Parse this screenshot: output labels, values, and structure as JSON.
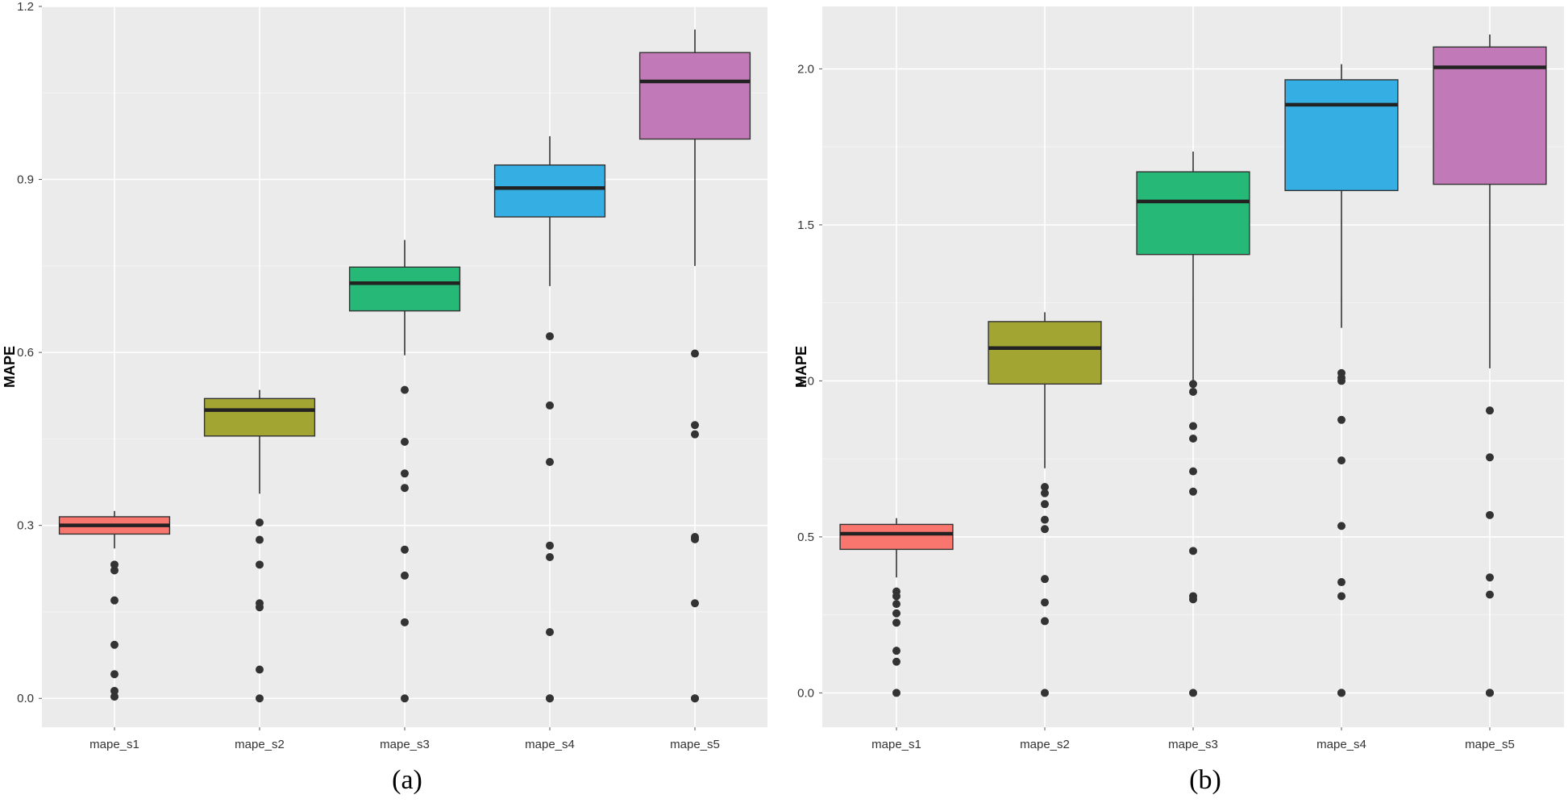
{
  "figure": {
    "panel_captions": [
      "(a)",
      "(b)"
    ]
  },
  "colors": {
    "panel_bg": "#EBEBEB",
    "grid_major": "#FFFFFF",
    "outlier": "#333333",
    "median": "#222222",
    "box_fills": [
      "#F8766D",
      "#A3A533",
      "#26B877",
      "#35AEE4",
      "#C179B7"
    ]
  },
  "chart_data": [
    {
      "type": "boxplot",
      "panel": "(a)",
      "ylabel": "MAPE",
      "xlabel": "",
      "categories": [
        "mape_s1",
        "mape_s2",
        "mape_s3",
        "mape_s4",
        "mape_s5"
      ],
      "ylim": [
        -0.05,
        1.2
      ],
      "yticks": [
        0.0,
        0.3,
        0.6,
        0.9,
        1.2
      ],
      "ytick_labels": [
        "0.0",
        "0.3",
        "0.6",
        "0.9",
        "1.2"
      ],
      "boxes": [
        {
          "min": 0.26,
          "q1": 0.285,
          "median": 0.3,
          "q3": 0.315,
          "max": 0.325,
          "outliers": [
            0.232,
            0.222,
            0.17,
            0.093,
            0.042,
            0.013,
            0.003
          ]
        },
        {
          "min": 0.355,
          "q1": 0.455,
          "median": 0.5,
          "q3": 0.52,
          "max": 0.535,
          "outliers": [
            0.305,
            0.275,
            0.232,
            0.165,
            0.158,
            0.05,
            0.0
          ]
        },
        {
          "min": 0.595,
          "q1": 0.672,
          "median": 0.72,
          "q3": 0.748,
          "max": 0.795,
          "outliers": [
            0.535,
            0.445,
            0.39,
            0.365,
            0.258,
            0.213,
            0.132,
            0.0
          ]
        },
        {
          "min": 0.715,
          "q1": 0.835,
          "median": 0.885,
          "q3": 0.925,
          "max": 0.975,
          "outliers": [
            0.628,
            0.508,
            0.41,
            0.265,
            0.245,
            0.115,
            0.0,
            0.0
          ]
        },
        {
          "min": 0.75,
          "q1": 0.97,
          "median": 1.07,
          "q3": 1.12,
          "max": 1.16,
          "outliers": [
            0.598,
            0.474,
            0.458,
            0.28,
            0.276,
            0.165,
            0.0,
            0.0
          ]
        }
      ]
    },
    {
      "type": "boxplot",
      "panel": "(b)",
      "ylabel": "MAPE",
      "xlabel": "",
      "categories": [
        "mape_s1",
        "mape_s2",
        "mape_s3",
        "mape_s4",
        "mape_s5"
      ],
      "ylim": [
        -0.11,
        2.2
      ],
      "yticks": [
        0.0,
        0.5,
        1.0,
        1.5,
        2.0
      ],
      "ytick_labels": [
        "0.0",
        "0.5",
        "1.0",
        "1.5",
        "2.0"
      ],
      "boxes": [
        {
          "min": 0.37,
          "q1": 0.46,
          "median": 0.51,
          "q3": 0.54,
          "max": 0.56,
          "outliers": [
            0.325,
            0.31,
            0.285,
            0.255,
            0.225,
            0.135,
            0.1,
            0.0
          ]
        },
        {
          "min": 0.72,
          "q1": 0.99,
          "median": 1.105,
          "q3": 1.19,
          "max": 1.22,
          "outliers": [
            0.66,
            0.64,
            0.605,
            0.555,
            0.525,
            0.365,
            0.29,
            0.23,
            0.0
          ]
        },
        {
          "min": 1.0,
          "q1": 1.405,
          "median": 1.575,
          "q3": 1.67,
          "max": 1.735,
          "outliers": [
            0.99,
            0.965,
            0.855,
            0.815,
            0.71,
            0.645,
            0.455,
            0.31,
            0.3,
            0.0
          ]
        },
        {
          "min": 1.17,
          "q1": 1.61,
          "median": 1.885,
          "q3": 1.965,
          "max": 2.015,
          "outliers": [
            1.025,
            1.01,
            1.0,
            0.875,
            0.745,
            0.535,
            0.355,
            0.31,
            0.0,
            0.0
          ]
        },
        {
          "min": 1.04,
          "q1": 1.63,
          "median": 2.005,
          "q3": 2.07,
          "max": 2.11,
          "outliers": [
            0.905,
            0.755,
            0.57,
            0.37,
            0.315,
            0.0,
            0.0
          ]
        }
      ]
    }
  ]
}
